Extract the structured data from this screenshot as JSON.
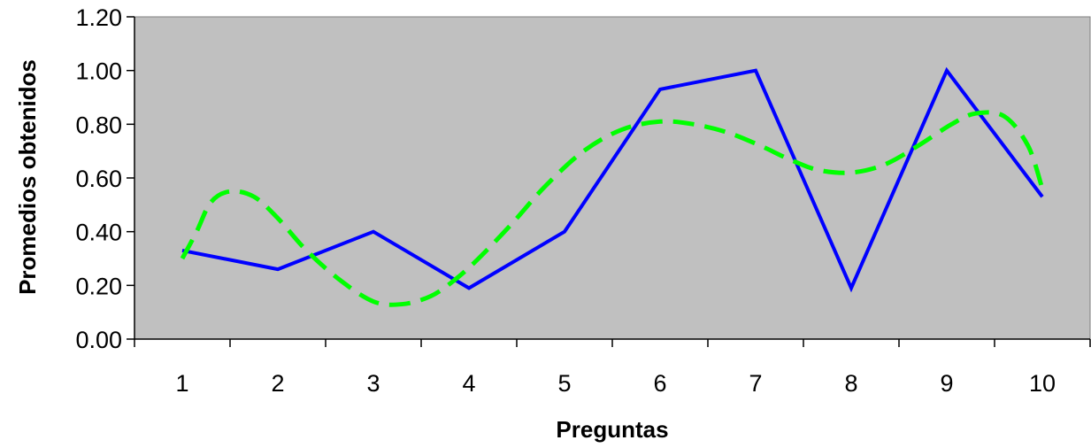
{
  "chart_data": {
    "type": "line",
    "xlabel": "Preguntas",
    "ylabel": "Promedios obtenidos",
    "categories": [
      "1",
      "2",
      "3",
      "4",
      "5",
      "6",
      "7",
      "8",
      "9",
      "10"
    ],
    "ylim": [
      0,
      1.2
    ],
    "yticks": [
      "0.00",
      "0.20",
      "0.40",
      "0.60",
      "0.80",
      "1.00",
      "1.20"
    ],
    "grid": false,
    "plot_background": "#c0c0c0",
    "series": [
      {
        "color": "#0000ff",
        "style": "solid",
        "values": [
          0.33,
          0.26,
          0.4,
          0.19,
          0.4,
          0.93,
          1.0,
          0.19,
          1.0,
          0.53
        ]
      },
      {
        "color": "#00ff00",
        "style": "dashed",
        "curve": "smooth",
        "x": [
          1,
          1.15,
          1.3,
          1.5,
          1.75,
          2,
          2.3,
          2.65,
          3,
          3.3,
          3.6,
          3.85,
          4.1,
          4.45,
          4.8,
          5.2,
          5.6,
          6,
          6.35,
          6.7,
          7.05,
          7.35,
          7.65,
          8,
          8.35,
          8.7,
          9.05,
          9.3,
          9.6,
          9.85,
          10
        ],
        "values": [
          0.3,
          0.4,
          0.51,
          0.55,
          0.53,
          0.45,
          0.33,
          0.22,
          0.14,
          0.13,
          0.16,
          0.22,
          0.3,
          0.43,
          0.57,
          0.7,
          0.78,
          0.81,
          0.8,
          0.77,
          0.72,
          0.67,
          0.63,
          0.62,
          0.65,
          0.72,
          0.8,
          0.84,
          0.83,
          0.72,
          0.56
        ]
      }
    ]
  }
}
